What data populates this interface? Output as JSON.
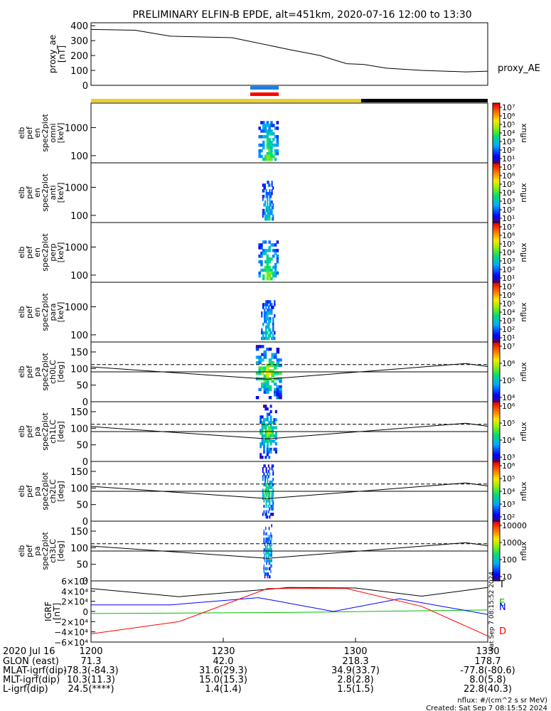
{
  "title": "PRELIMINARY ELFIN-B EPDE, alt=451km, 2020-07-16 12:00 to 13:30",
  "chart_data": [
    {
      "type": "line",
      "panel": "proxy_ae",
      "ylabel": [
        "proxy_ae",
        "[nT]"
      ],
      "series_label": "proxy_AE",
      "yticks": [
        "400",
        "300",
        "200",
        "100",
        "0"
      ],
      "ylim": [
        0,
        420
      ],
      "x_minutes": [
        0,
        10,
        18,
        32,
        45,
        52,
        58,
        62,
        67,
        75,
        85,
        90
      ],
      "values": [
        375,
        370,
        330,
        320,
        240,
        200,
        145,
        140,
        115,
        100,
        90,
        95
      ]
    },
    {
      "type": "heatmap",
      "panel": "spectrogram",
      "ylabel": [
        "elb",
        "pef",
        "en",
        "spec2plot",
        "omni",
        "[keV]"
      ],
      "yticks": [
        "1000",
        "100"
      ],
      "colorbar_ticks": [
        "10⁷",
        "10⁶",
        "10⁵",
        "10⁴",
        "10³",
        "10²",
        "10¹"
      ],
      "colorbar_label": "nflux"
    },
    {
      "type": "heatmap",
      "panel": "spectrogram",
      "ylabel": [
        "elb",
        "pef",
        "en",
        "spec2plot",
        "anti",
        "[keV]"
      ],
      "yticks": [
        "1000",
        "100"
      ],
      "colorbar_ticks": [
        "10⁷",
        "10⁶",
        "10⁵",
        "10⁴",
        "10³",
        "10²",
        "10¹"
      ],
      "colorbar_label": "nflux"
    },
    {
      "type": "heatmap",
      "panel": "spectrogram",
      "ylabel": [
        "elb",
        "pef",
        "en",
        "spec2plot",
        "perp",
        "[keV]"
      ],
      "yticks": [
        "1000",
        "100"
      ],
      "colorbar_ticks": [
        "10⁷",
        "10⁶",
        "10⁵",
        "10⁴",
        "10³",
        "10²",
        "10¹"
      ],
      "colorbar_label": "nflux"
    },
    {
      "type": "heatmap",
      "panel": "spectrogram",
      "ylabel": [
        "elb",
        "pef",
        "en",
        "spec2plot",
        "para",
        "[keV]"
      ],
      "yticks": [
        "1000",
        "100"
      ],
      "colorbar_ticks": [
        "10⁷",
        "10⁶",
        "10⁵",
        "10⁴",
        "10³",
        "10²",
        "10¹"
      ],
      "colorbar_label": "nflux"
    },
    {
      "type": "heatmap",
      "panel": "pitch",
      "ylabel": [
        "elb",
        "pef",
        "pa",
        "spec2plot",
        "ch0LC",
        "[deg]"
      ],
      "yticks": [
        "150",
        "100",
        "50",
        "0"
      ],
      "colorbar_ticks": [
        "10⁷",
        "10⁶",
        "10⁵",
        "10⁴"
      ],
      "colorbar_label": "nflux"
    },
    {
      "type": "heatmap",
      "panel": "pitch",
      "ylabel": [
        "elb",
        "pef",
        "pa",
        "spec2plot",
        "ch1LC",
        "[deg]"
      ],
      "yticks": [
        "150",
        "100",
        "50",
        "0"
      ],
      "colorbar_ticks": [
        "10⁶",
        "10⁵",
        "10⁴",
        "10³"
      ],
      "colorbar_label": "nflux"
    },
    {
      "type": "heatmap",
      "panel": "pitch",
      "ylabel": [
        "elb",
        "pef",
        "pa",
        "spec2plot",
        "ch2LC",
        "[deg]"
      ],
      "yticks": [
        "150",
        "100",
        "50",
        "0"
      ],
      "colorbar_ticks": [
        "10⁶",
        "10⁵",
        "10⁴",
        "10³",
        "10²"
      ],
      "colorbar_label": "nflux"
    },
    {
      "type": "heatmap",
      "panel": "pitch",
      "ylabel": [
        "elb",
        "pef",
        "pa",
        "spec2plot",
        "ch3LC",
        "[deg]"
      ],
      "yticks": [
        "150",
        "100",
        "50",
        "0"
      ],
      "colorbar_ticks": [
        "10000",
        "1000",
        "100",
        "10"
      ],
      "colorbar_label": "nflux"
    },
    {
      "type": "line",
      "panel": "igrf",
      "ylabel": [
        "IGRF",
        "[nT]"
      ],
      "yticks": [
        "6×10⁴",
        "4×10⁴",
        "2×10⁴",
        "0",
        "−2×10⁴",
        "−4×10⁴",
        "−6×10⁴"
      ],
      "ylim": [
        -60000,
        60000
      ],
      "series": [
        {
          "name": "T",
          "color": "#000000"
        },
        {
          "name": "E",
          "color": "#00c000"
        },
        {
          "name": "N",
          "color": "#0000ff"
        },
        {
          "name": "D",
          "color": "#ff0000"
        }
      ]
    }
  ],
  "stamp": "Sat Sep 7 08:15:52 2024",
  "xaxis": {
    "date": "2020 Jul 16",
    "rows": [
      {
        "label": "GLON (east)",
        "values": [
          "71.3",
          "42.0",
          "218.3",
          "178.7"
        ]
      },
      {
        "label": "MLAT-igrf(dip)",
        "values": [
          "-78.3(-84.3)",
          "31.6(29.3)",
          "34.9(33.7)",
          "-77.8(-80.6)"
        ]
      },
      {
        "label": "MLT-igrf(dip)",
        "values": [
          "10.3(11.3)",
          "15.0(15.3)",
          "2.8(2.8)",
          "8.0(5.8)"
        ]
      },
      {
        "label": "L-igrf(dip)",
        "values": [
          "24.5(****)",
          "1.4(1.4)",
          "1.5(1.5)",
          "22.8(40.3)"
        ]
      }
    ],
    "ticks": [
      "1200",
      "1230",
      "1300",
      "1330"
    ]
  },
  "footer": {
    "units": "nflux: #/(cm^2 s sr MeV)",
    "created": "Created: Sat Sep  7 08:15:52 2024"
  }
}
